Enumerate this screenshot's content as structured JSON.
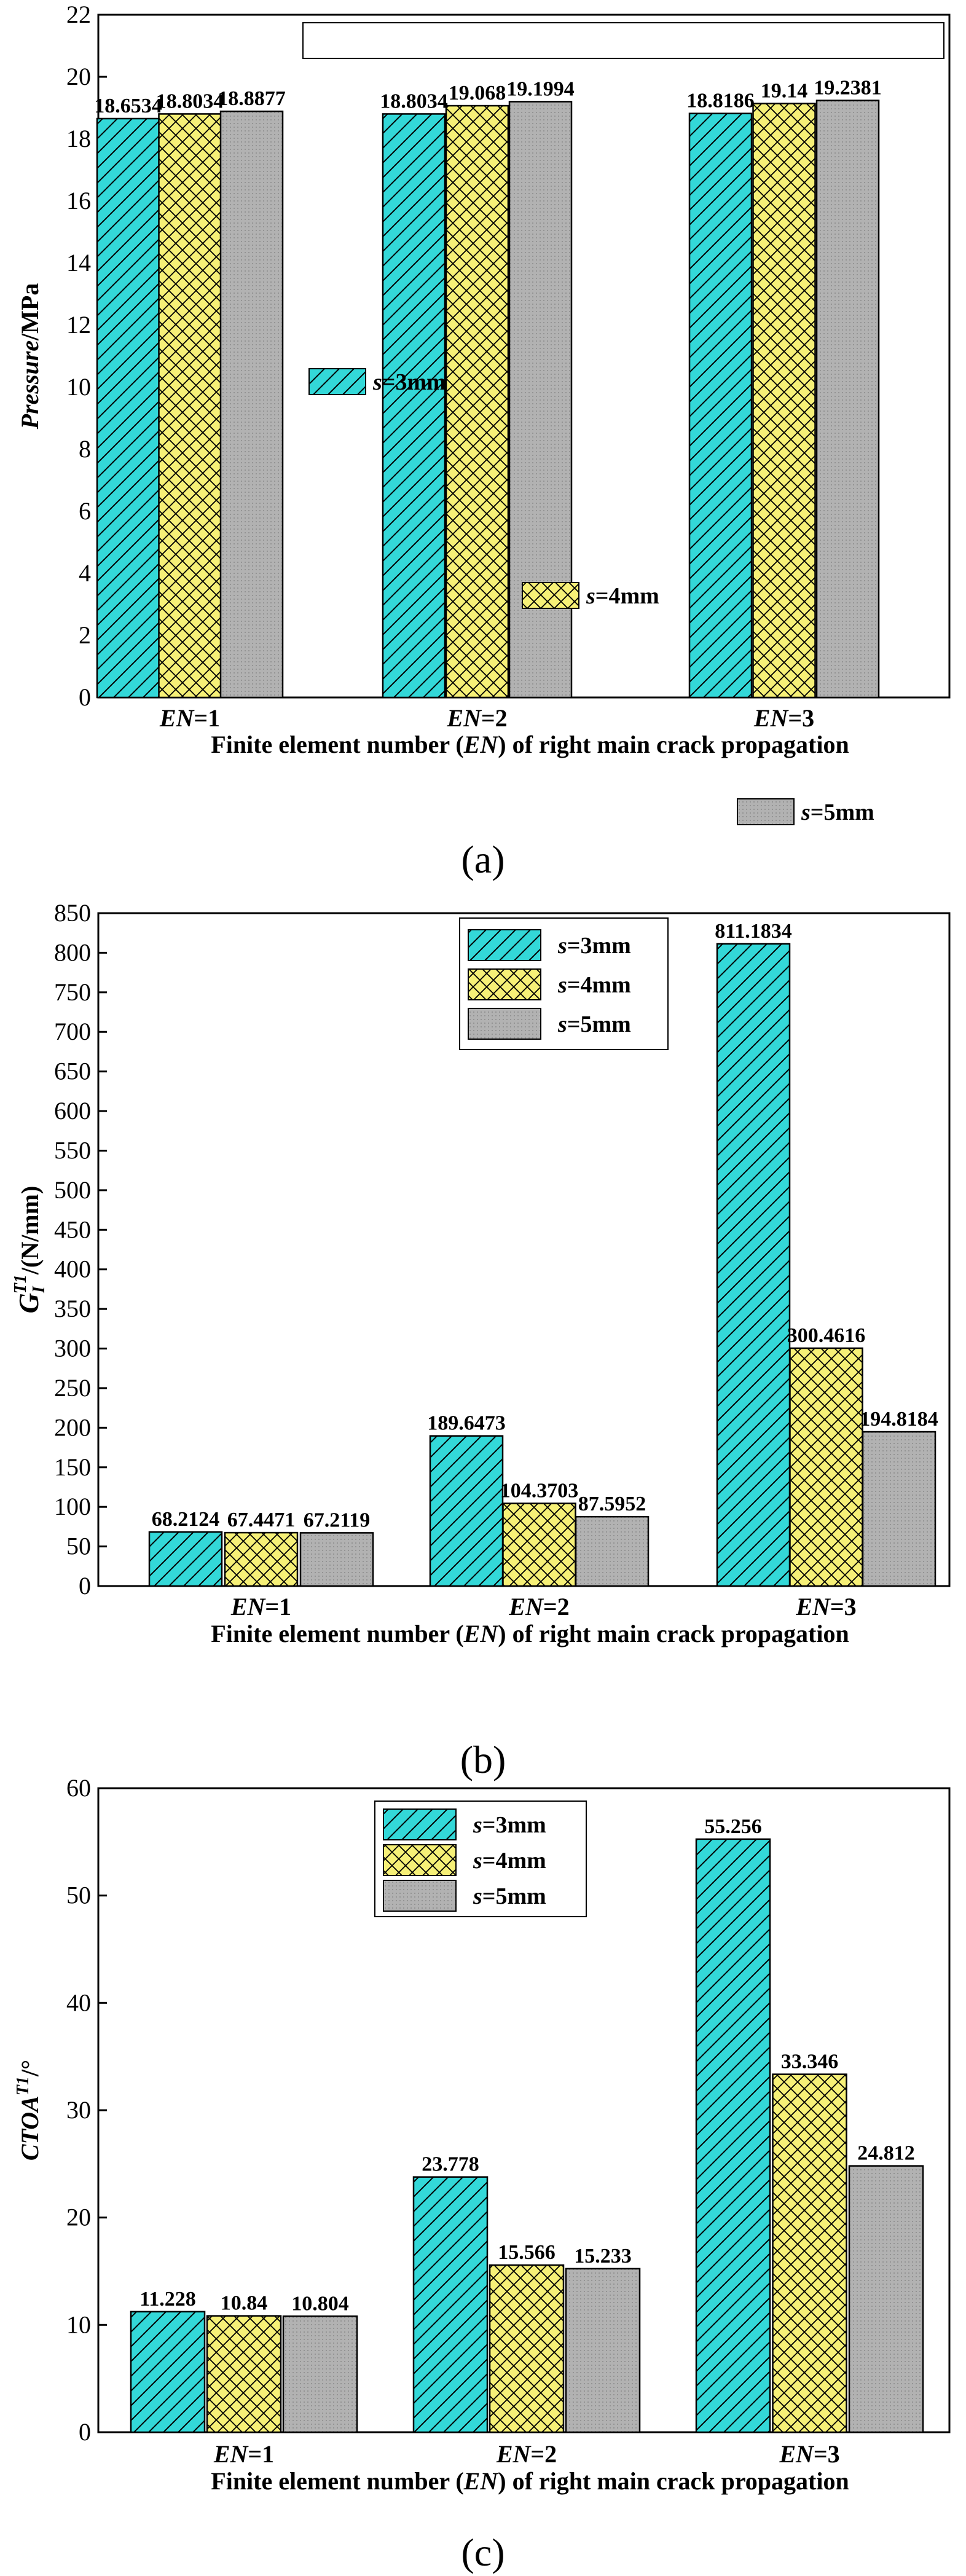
{
  "colors": {
    "s3": "#33d8d8",
    "s4": "#f6f077",
    "s5": "#b2b2b2",
    "edge": "#000000"
  },
  "chart_data": [
    {
      "type": "bar",
      "panel": "(a)",
      "categories": [
        "EN=1",
        "EN=2",
        "EN=3"
      ],
      "category_parts": [
        {
          "var": "EN",
          "rest": "=1"
        },
        {
          "var": "EN",
          "rest": "=2"
        },
        {
          "var": "EN",
          "rest": "=3"
        }
      ],
      "series": [
        {
          "name": "s=3mm",
          "var": "s",
          "rest": "=3mm",
          "values": [
            18.6534,
            18.8034,
            18.8186
          ]
        },
        {
          "name": "s=4mm",
          "var": "s",
          "rest": "=4mm",
          "values": [
            18.8034,
            19.068,
            19.14
          ]
        },
        {
          "name": "s=5mm",
          "var": "s",
          "rest": "=5mm",
          "values": [
            18.8877,
            19.1994,
            19.2381
          ]
        }
      ],
      "value_labels": [
        [
          "18.6534",
          "18.8034",
          "18.8186"
        ],
        [
          "18.8034",
          "19.068",
          "19.14"
        ],
        [
          "18.8877",
          "19.1994",
          "19.2381"
        ]
      ],
      "ylim": [
        0,
        22
      ],
      "yticks": [
        0,
        2,
        4,
        6,
        8,
        10,
        12,
        14,
        16,
        18,
        20,
        22
      ],
      "ylabel": "Pressure/MPa",
      "ylabel_parts": {
        "italic": "Pressure",
        "rest": "/MPa"
      },
      "xlabel": "Finite element number (EN) of right main crack propagation",
      "xlabel_parts": {
        "pre": "Finite element number (",
        "var": "EN",
        "post": ") of right main crack propagation"
      },
      "legend": "top, horizontal"
    },
    {
      "type": "bar",
      "panel": "(b)",
      "categories": [
        "EN=1",
        "EN=2",
        "EN=3"
      ],
      "category_parts": [
        {
          "var": "EN",
          "rest": "=1"
        },
        {
          "var": "EN",
          "rest": "=2"
        },
        {
          "var": "EN",
          "rest": "=3"
        }
      ],
      "series": [
        {
          "name": "s=3mm",
          "var": "s",
          "rest": "=3mm",
          "values": [
            68.2124,
            189.6473,
            811.1834
          ]
        },
        {
          "name": "s=4mm",
          "var": "s",
          "rest": "=4mm",
          "values": [
            67.4471,
            104.3703,
            300.4616
          ]
        },
        {
          "name": "s=5mm",
          "var": "s",
          "rest": "=5mm",
          "values": [
            67.2119,
            87.5952,
            194.8184
          ]
        }
      ],
      "value_labels": [
        [
          "68.2124",
          "189.6473",
          "811.1834"
        ],
        [
          "67.4471",
          "104.3703",
          "300.4616"
        ],
        [
          "67.2119",
          "87.5952",
          "194.8184"
        ]
      ],
      "ylim": [
        0,
        850
      ],
      "yticks": [
        0,
        50,
        100,
        150,
        200,
        250,
        300,
        350,
        400,
        450,
        500,
        550,
        600,
        650,
        700,
        750,
        800,
        850
      ],
      "ylabel": "G_I^T1/(N/mm)",
      "ylabel_parts": {
        "G": "G",
        "sub": "I",
        "sup": "T1",
        "rest": "/(N/mm)"
      },
      "xlabel": "Finite element number (EN)  of right main crack propagation",
      "xlabel_parts": {
        "pre": "Finite element number (",
        "var": "EN",
        "post": ")  of right main crack propagation"
      },
      "legend": "top-center, vertical"
    },
    {
      "type": "bar",
      "panel": "(c)",
      "categories": [
        "EN=1",
        "EN=2",
        "EN=3"
      ],
      "category_parts": [
        {
          "var": "EN",
          "rest": "=1"
        },
        {
          "var": "EN",
          "rest": "=2"
        },
        {
          "var": "EN",
          "rest": "=3"
        }
      ],
      "series": [
        {
          "name": "s=3mm",
          "var": "s",
          "rest": "=3mm",
          "values": [
            11.228,
            23.778,
            55.256
          ]
        },
        {
          "name": "s=4mm",
          "var": "s",
          "rest": "=4mm",
          "values": [
            10.84,
            15.566,
            33.346
          ]
        },
        {
          "name": "s=5mm",
          "var": "s",
          "rest": "=5mm",
          "values": [
            10.804,
            15.233,
            24.812
          ]
        }
      ],
      "value_labels": [
        [
          "11.228",
          "23.778",
          "55.256"
        ],
        [
          "10.84",
          "15.566",
          "33.346"
        ],
        [
          "10.804",
          "15.233",
          "24.812"
        ]
      ],
      "ylim": [
        0,
        60
      ],
      "yticks": [
        0,
        10,
        20,
        30,
        40,
        50,
        60
      ],
      "ylabel": "CTOA^T1/°",
      "ylabel_parts": {
        "italic": "CTOA",
        "sup": "T1",
        "rest": "/°"
      },
      "xlabel": "Finite element number (EN)  of right main crack propagation",
      "xlabel_parts": {
        "pre": "Finite element number (",
        "var": "EN",
        "post": ")  of right main crack propagation"
      },
      "legend": "top-center, vertical"
    }
  ]
}
